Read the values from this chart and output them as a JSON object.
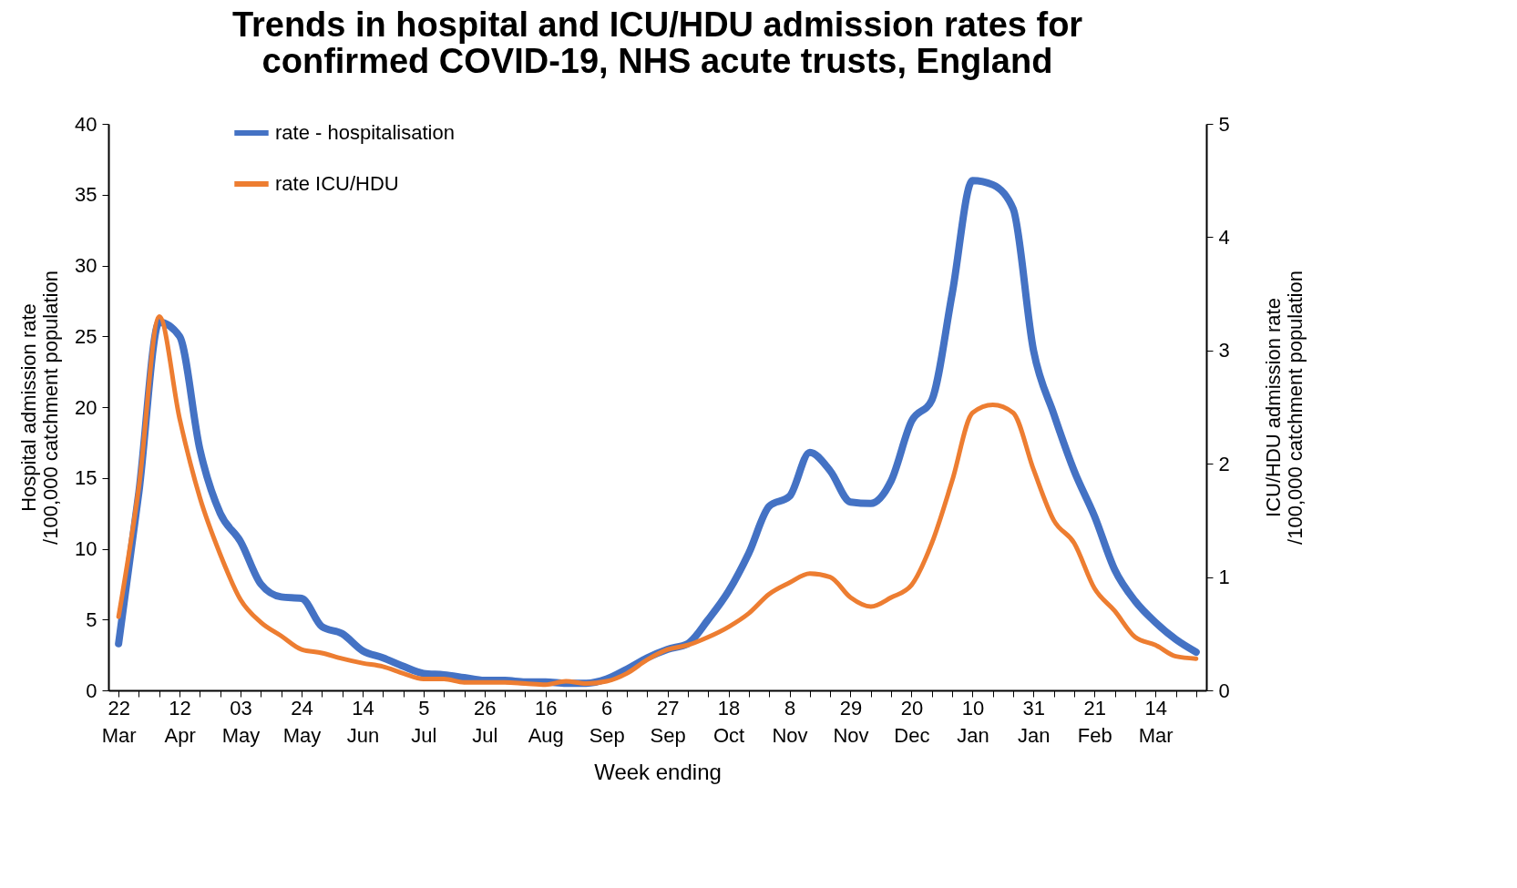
{
  "chart_data": {
    "type": "line",
    "title": "Trends in hospital and ICU/HDU admission rates for confirmed COVID-19, NHS acute trusts, England",
    "xlabel": "Week ending",
    "ylabel": "Hospital admission rate /100,000 catchment population",
    "y2label": "ICU/HDU  admission rate /100,000 catchment population",
    "categories": [
      "22 Mar",
      null,
      null,
      "12 Apr",
      null,
      null,
      "03 May",
      null,
      null,
      "24 May",
      null,
      null,
      "14 Jun",
      null,
      null,
      "5 Jul",
      null,
      null,
      "26 Jul",
      null,
      null,
      "16 Aug",
      null,
      null,
      "6 Sep",
      null,
      null,
      "27 Sep",
      null,
      null,
      "18 Oct",
      null,
      null,
      "8 Nov",
      null,
      null,
      "29 Nov",
      null,
      null,
      "20 Dec",
      null,
      null,
      "10 Jan",
      null,
      null,
      "31 Jan",
      null,
      null,
      "21 Feb",
      null,
      null,
      "14 Mar",
      null,
      null
    ],
    "series": [
      {
        "name": "rate - hospitalisation",
        "color": "#4472c4",
        "values": [
          3.3,
          14,
          26,
          25,
          17,
          12.5,
          10.5,
          7.5,
          6.6,
          6.5,
          4.5,
          4,
          2.8,
          2.3,
          1.7,
          1.2,
          1.1,
          0.9,
          0.7,
          0.7,
          0.6,
          0.6,
          0.5,
          0.5,
          0.8,
          1.5,
          2.3,
          2.9,
          3.3,
          5,
          7,
          9.7,
          13,
          13.7,
          16.8,
          15.5,
          13.3,
          13.2,
          14.8,
          19,
          20.5,
          28,
          36,
          35.7,
          34,
          24,
          19.5,
          15.5,
          12.3,
          8.5,
          6.3,
          4.8,
          3.6,
          2.7
        ]
      },
      {
        "name": "rate ICU/HDU",
        "color": "#ed7d31",
        "axis": "y2",
        "values": [
          0.65,
          1.8,
          3.3,
          2.4,
          1.7,
          1.2,
          0.8,
          0.6,
          0.48,
          0.36,
          0.33,
          0.28,
          0.24,
          0.21,
          0.15,
          0.1,
          0.1,
          0.07,
          0.07,
          0.07,
          0.06,
          0.05,
          0.08,
          0.06,
          0.08,
          0.15,
          0.27,
          0.36,
          0.4,
          0.47,
          0.56,
          0.68,
          0.85,
          0.95,
          1.03,
          1.0,
          0.82,
          0.74,
          0.82,
          0.93,
          1.3,
          1.85,
          2.45,
          2.52,
          2.45,
          1.95,
          1.5,
          1.3,
          0.9,
          0.7,
          0.47,
          0.4,
          0.3,
          0.28
        ]
      }
    ],
    "ylim": [
      0,
      40
    ],
    "yticks": [
      0,
      5,
      10,
      15,
      20,
      25,
      30,
      35,
      40
    ],
    "y2lim": [
      0,
      5
    ],
    "y2ticks": [
      0,
      1,
      2,
      3,
      4,
      5
    ],
    "grid": false,
    "legend": "top left",
    "line_style": "solid"
  }
}
